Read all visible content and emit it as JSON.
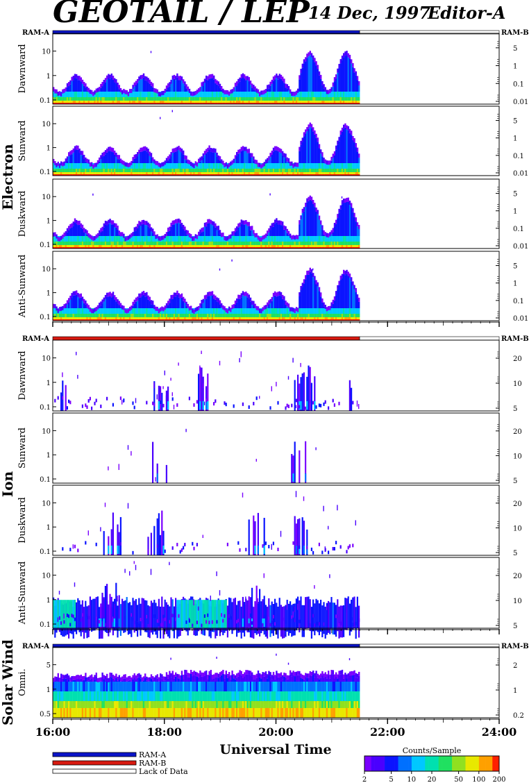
{
  "header": {
    "title": "GEOTAIL / LEP",
    "date": "14 Dec, 1997",
    "editor": "Editor-A"
  },
  "colors": {
    "ramA": "#0b14c8",
    "ramB": "#d81a10",
    "lack": "#ffffff",
    "frame": "#000000"
  },
  "groups": [
    {
      "label": "Electron",
      "ram_left": "RAM-A",
      "ram_right": "RAM-B",
      "bar_color": "ramA",
      "panels": [
        {
          "label": "Dawnward",
          "left_ticks": [
            "0.1",
            "1",
            "10"
          ],
          "right_ticks": [
            "0.01",
            "0.1",
            "1",
            "5"
          ]
        },
        {
          "label": "Sunward",
          "left_ticks": [
            "0.1",
            "1",
            "10"
          ],
          "right_ticks": [
            "0.01",
            "0.1",
            "1",
            "5"
          ]
        },
        {
          "label": "Duskward",
          "left_ticks": [
            "0.1",
            "1",
            "10"
          ],
          "right_ticks": [
            "0.01",
            "0.1",
            "1",
            "5"
          ]
        },
        {
          "label": "Anti-Sunward",
          "left_ticks": [
            "0.1",
            "1",
            "10"
          ],
          "right_ticks": [
            "0.01",
            "0.1",
            "1",
            "5"
          ]
        }
      ]
    },
    {
      "label": "Ion",
      "ram_left": "RAM-A",
      "ram_right": "RAM-B",
      "bar_color": "ramB",
      "panels": [
        {
          "label": "Dawnward",
          "left_ticks": [
            "0.1",
            "1",
            "10"
          ],
          "right_ticks": [
            "5",
            "10",
            "20"
          ]
        },
        {
          "label": "Sunward",
          "left_ticks": [
            "0.1",
            "1",
            "10"
          ],
          "right_ticks": [
            "5",
            "10",
            "20"
          ]
        },
        {
          "label": "Duskward",
          "left_ticks": [
            "0.1",
            "1",
            "10"
          ],
          "right_ticks": [
            "5",
            "10",
            "20"
          ]
        },
        {
          "label": "Anti-Sunward",
          "left_ticks": [
            "0.1",
            "1",
            "10"
          ],
          "right_ticks": [
            "5",
            "10",
            "20"
          ]
        }
      ]
    },
    {
      "label": "Solar Wind",
      "ram_left": "RAM-A",
      "ram_right": "RAM-B",
      "bar_color": "ramA",
      "panels": [
        {
          "label": "Omni.",
          "left_ticks": [
            "0.5",
            "1",
            "5"
          ],
          "right_ticks": [
            "0.2",
            "1",
            "2"
          ]
        }
      ]
    }
  ],
  "x_axis": {
    "label": "Universal Time",
    "ticks": [
      "16:00",
      "18:00",
      "20:00",
      "22:00",
      "24:00"
    ]
  },
  "legend": {
    "items": [
      {
        "label": "RAM-A",
        "color": "ramA"
      },
      {
        "label": "RAM-B",
        "color": "ramB"
      },
      {
        "label": "Lack of Data",
        "color": "lack"
      }
    ]
  },
  "colorbar": {
    "title": "Counts/Sample",
    "ticks": [
      "2",
      "5",
      "10",
      "20",
      "50",
      "100",
      "200"
    ]
  },
  "chart_data": {
    "type": "heatmap",
    "x_range": [
      "16:00",
      "24:00"
    ],
    "data_end": "21:30",
    "xlabel": "Universal Time",
    "color_scale": {
      "label": "Counts/Sample",
      "min": 2,
      "max": 200,
      "log": true
    },
    "panels": [
      {
        "group": "Electron",
        "panel": "Dawnward",
        "y_range": [
          0.08,
          40
        ],
        "y_log": true
      },
      {
        "group": "Electron",
        "panel": "Sunward",
        "y_range": [
          0.08,
          40
        ],
        "y_log": true
      },
      {
        "group": "Electron",
        "panel": "Duskward",
        "y_range": [
          0.08,
          40
        ],
        "y_log": true
      },
      {
        "group": "Electron",
        "panel": "Anti-Sunward",
        "y_range": [
          0.08,
          40
        ],
        "y_log": true
      },
      {
        "group": "Ion",
        "panel": "Dawnward",
        "y_range": [
          0.08,
          40
        ],
        "y_log": true
      },
      {
        "group": "Ion",
        "panel": "Sunward",
        "y_range": [
          0.08,
          40
        ],
        "y_log": true
      },
      {
        "group": "Ion",
        "panel": "Duskward",
        "y_range": [
          0.08,
          40
        ],
        "y_log": true
      },
      {
        "group": "Ion",
        "panel": "Anti-Sunward",
        "y_range": [
          0.08,
          40
        ],
        "y_log": true
      },
      {
        "group": "Solar Wind",
        "panel": "Omni.",
        "y_range": [
          0.25,
          8
        ],
        "y_log": true
      }
    ]
  }
}
